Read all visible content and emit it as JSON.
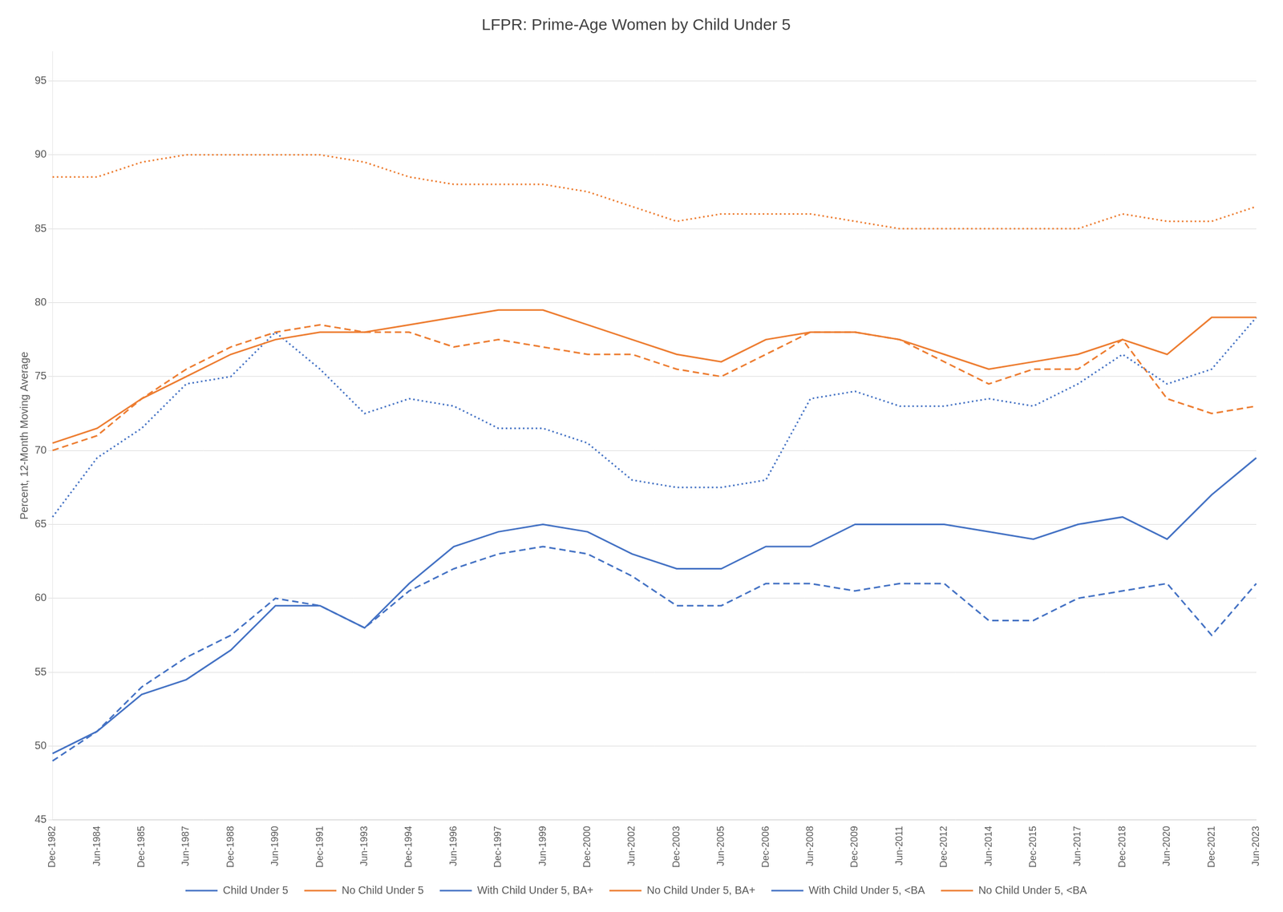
{
  "chart_data": {
    "type": "line",
    "title": "LFPR: Prime-Age Women by Child Under 5",
    "ylabel": "Percent, 12-Month Moving Average",
    "categories": [
      "Dec-1982",
      "Jun-1984",
      "Dec-1985",
      "Jun-1987",
      "Dec-1988",
      "Jun-1990",
      "Dec-1991",
      "Jun-1993",
      "Dec-1994",
      "Jun-1996",
      "Dec-1997",
      "Jun-1999",
      "Dec-2000",
      "Jun-2002",
      "Dec-2003",
      "Jun-2005",
      "Dec-2006",
      "Jun-2008",
      "Dec-2009",
      "Jun-2011",
      "Dec-2012",
      "Jun-2014",
      "Dec-2015",
      "Jun-2017",
      "Dec-2018",
      "Jun-2020",
      "Dec-2021",
      "Jun-2023"
    ],
    "series": [
      {
        "name": "Child Under 5",
        "color": "#4472C4",
        "line_style": "solid",
        "values": [
          49.5,
          51.0,
          53.5,
          54.5,
          56.5,
          59.5,
          59.5,
          58.0,
          61.0,
          63.5,
          64.5,
          65.0,
          64.5,
          63.0,
          62.0,
          62.0,
          63.5,
          63.5,
          65.0,
          65.0,
          65.0,
          64.5,
          64.0,
          65.0,
          65.5,
          64.0,
          67.0,
          69.5
        ]
      },
      {
        "name": "No Child Under 5",
        "color": "#ED7D31",
        "line_style": "solid",
        "values": [
          70.5,
          71.5,
          73.5,
          75.0,
          76.5,
          77.5,
          78.0,
          78.0,
          78.5,
          79.0,
          79.5,
          79.5,
          78.5,
          77.5,
          76.5,
          76.0,
          77.5,
          78.0,
          78.0,
          77.5,
          76.5,
          75.5,
          76.0,
          76.5,
          77.5,
          76.5,
          79.0,
          79.0
        ]
      },
      {
        "name": "With Child Under 5, BA+",
        "color": "#4472C4",
        "line_style": "dotted",
        "values": [
          65.5,
          69.5,
          71.5,
          74.5,
          75.0,
          78.0,
          75.5,
          72.5,
          73.5,
          73.0,
          71.5,
          71.5,
          70.5,
          68.0,
          67.5,
          67.5,
          68.0,
          73.5,
          74.0,
          73.0,
          73.0,
          73.5,
          73.0,
          74.5,
          76.5,
          74.5,
          75.5,
          79.0
        ]
      },
      {
        "name": "No Child Under 5, BA+",
        "color": "#ED7D31",
        "line_style": "dotted",
        "values": [
          88.5,
          88.5,
          89.5,
          90.0,
          90.0,
          90.0,
          90.0,
          89.5,
          88.5,
          88.0,
          88.0,
          88.0,
          87.5,
          86.5,
          85.5,
          86.0,
          86.0,
          86.0,
          85.5,
          85.0,
          85.0,
          85.0,
          85.0,
          85.0,
          86.0,
          85.5,
          85.5,
          86.5
        ]
      },
      {
        "name": "With Child Under 5, <BA",
        "color": "#4472C4",
        "line_style": "dashed",
        "values": [
          49.0,
          51.0,
          54.0,
          56.0,
          57.5,
          60.0,
          59.5,
          58.0,
          60.5,
          62.0,
          63.0,
          63.5,
          63.0,
          61.5,
          59.5,
          59.5,
          61.0,
          61.0,
          60.5,
          61.0,
          61.0,
          58.5,
          58.5,
          60.0,
          60.5,
          61.0,
          57.5,
          61.0
        ]
      },
      {
        "name": "No Child Under 5, <BA",
        "color": "#ED7D31",
        "line_style": "dashed",
        "values": [
          70.0,
          71.0,
          73.5,
          75.5,
          77.0,
          78.0,
          78.5,
          78.0,
          78.0,
          77.0,
          77.5,
          77.0,
          76.5,
          76.5,
          75.5,
          75.0,
          76.5,
          78.0,
          78.0,
          77.5,
          76.0,
          74.5,
          75.5,
          75.5,
          77.5,
          73.5,
          72.5,
          73.0
        ]
      }
    ],
    "ylim": [
      45,
      97
    ],
    "yticks": [
      45,
      50,
      55,
      60,
      65,
      70,
      75,
      80,
      85,
      90,
      95
    ],
    "grid": true,
    "legend": "bottom"
  }
}
